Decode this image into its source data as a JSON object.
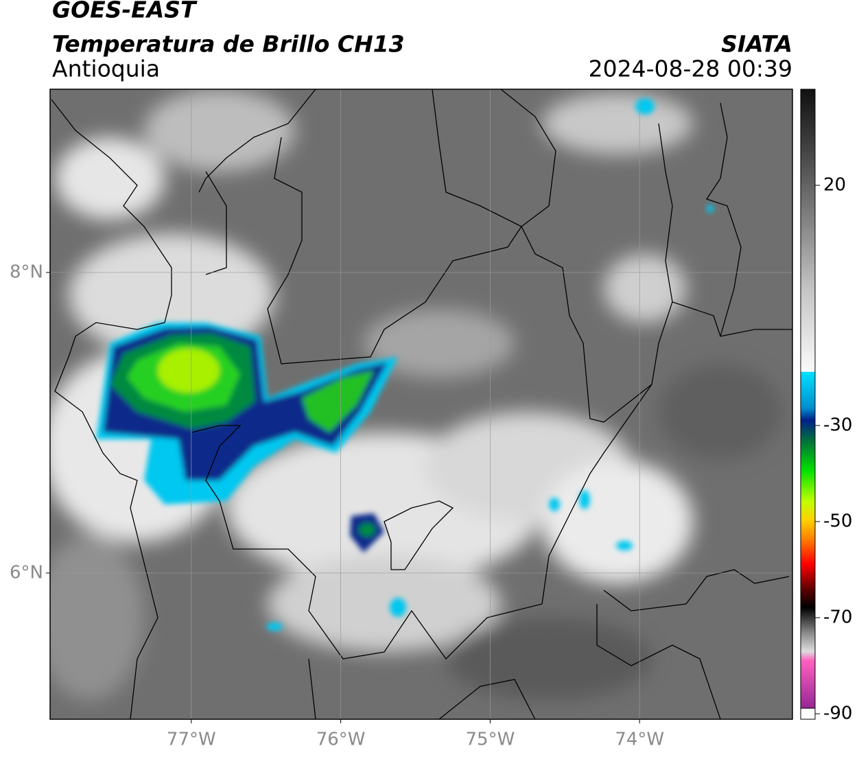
{
  "header": {
    "title": "GOES-EAST",
    "subtitle": "Temperatura de Brillo CH13",
    "region": "Antioquia",
    "source": "SIATA",
    "datetime": "2024-08-28 00:39"
  },
  "map": {
    "xlim": [
      -77.945,
      -72.977
    ],
    "ylim": [
      5.027,
      9.219
    ],
    "xticks": [
      {
        "value": -77,
        "label": "77°W"
      },
      {
        "value": -76,
        "label": "76°W"
      },
      {
        "value": -75,
        "label": "75°W"
      },
      {
        "value": -74,
        "label": "74°W"
      }
    ],
    "yticks": [
      {
        "value": 8,
        "label": "8°N"
      },
      {
        "value": 6,
        "label": "6°N"
      }
    ],
    "grid": true
  },
  "colorbar": {
    "lim": [
      -90,
      40
    ],
    "ticks": [
      20,
      -30,
      -50,
      -70,
      -90
    ]
  }
}
